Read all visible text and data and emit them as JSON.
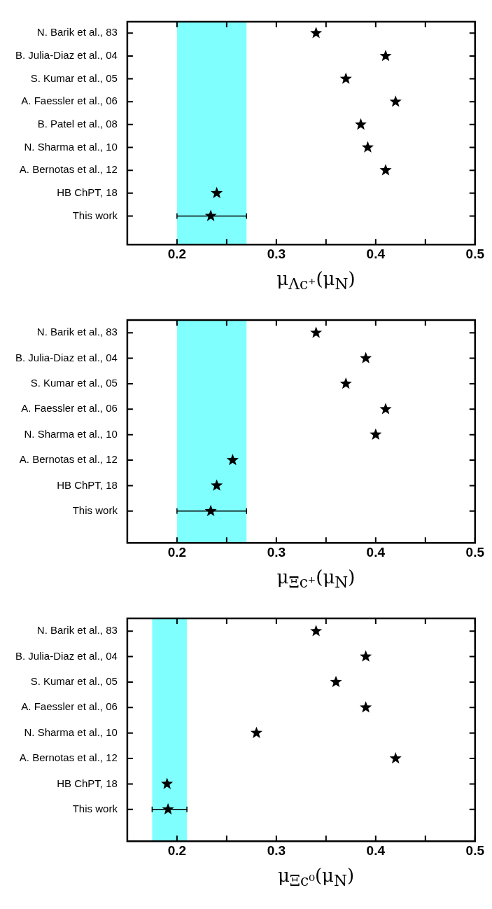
{
  "chart_data": [
    {
      "type": "scatter",
      "orientation": "horizontal",
      "xlabel": "μ$_{Λc⁺}$(μ$_{N}$)",
      "categories": [
        "N. Barik et al., 83",
        "B. Julia-Diaz et al., 04",
        "S. Kumar et al., 05",
        "A. Faessler et al., 06",
        "B. Patel et al., 08",
        "N. Sharma et al., 10",
        "A. Bernotas et al., 12",
        "HB ChPT, 18",
        "This work"
      ],
      "series": [
        {
          "color": "#000000",
          "values": [
            0.34,
            0.41,
            0.37,
            0.42,
            0.385,
            0.392,
            0.41,
            0.24,
            0.234
          ],
          "errors": [
            null,
            null,
            null,
            null,
            null,
            null,
            null,
            null,
            [
              0.2,
              0.27
            ]
          ]
        }
      ],
      "xlim": [
        0.15,
        0.5
      ],
      "xticks": [
        0.2,
        {
          "value": 0.25,
          "label": null
        },
        0.3,
        {
          "value": 0.35,
          "label": null
        },
        0.4,
        {
          "value": 0.45,
          "label": null
        },
        0.5
      ],
      "bands": [
        {
          "axis": "x",
          "from": 0.2,
          "to": 0.27,
          "color": "#80ffff"
        }
      ],
      "marker": "star",
      "grid": false,
      "legend": false
    },
    {
      "type": "scatter",
      "orientation": "horizontal",
      "xlabel": "μ$_{Ξc⁺}$(μ$_{N}$)",
      "categories": [
        "N. Barik et al., 83",
        "B. Julia-Diaz et al., 04",
        "S. Kumar et al., 05",
        "A. Faessler et al., 06",
        "N. Sharma et al., 10",
        "A. Bernotas et al., 12",
        "HB ChPT, 18",
        "This work"
      ],
      "series": [
        {
          "color": "#000000",
          "values": [
            0.34,
            0.39,
            0.37,
            0.41,
            0.4,
            0.256,
            0.24,
            0.234
          ],
          "errors": [
            null,
            null,
            null,
            null,
            null,
            null,
            null,
            [
              0.2,
              0.27
            ]
          ]
        }
      ],
      "xlim": [
        0.15,
        0.5
      ],
      "xticks": [
        0.2,
        {
          "value": 0.25,
          "label": null
        },
        0.3,
        {
          "value": 0.35,
          "label": null
        },
        0.4,
        {
          "value": 0.45,
          "label": null
        },
        0.5
      ],
      "bands": [
        {
          "axis": "x",
          "from": 0.2,
          "to": 0.27,
          "color": "#80ffff"
        }
      ],
      "marker": "star",
      "grid": false,
      "legend": false
    },
    {
      "type": "scatter",
      "orientation": "horizontal",
      "xlabel": "μ$_{Ξc⁰}$(μ$_{N}$)",
      "categories": [
        "N. Barik et al., 83",
        "B. Julia-Diaz et al., 04",
        "S. Kumar et al., 05",
        "A. Faessler et al., 06",
        "N. Sharma et al., 10",
        "A. Bernotas et al., 12",
        "HB ChPT, 18",
        "This work"
      ],
      "series": [
        {
          "color": "#000000",
          "values": [
            0.34,
            0.39,
            0.36,
            0.39,
            0.28,
            0.42,
            0.19,
            0.191
          ],
          "errors": [
            null,
            null,
            null,
            null,
            null,
            null,
            null,
            [
              0.175,
              0.21
            ]
          ]
        }
      ],
      "xlim": [
        0.15,
        0.5
      ],
      "xticks": [
        0.2,
        {
          "value": 0.25,
          "label": null
        },
        0.3,
        {
          "value": 0.35,
          "label": null
        },
        0.4,
        {
          "value": 0.45,
          "label": null
        },
        0.5
      ],
      "bands": [
        {
          "axis": "x",
          "from": 0.175,
          "to": 0.21,
          "color": "#80ffff"
        }
      ],
      "marker": "star",
      "grid": false,
      "legend": false
    }
  ]
}
